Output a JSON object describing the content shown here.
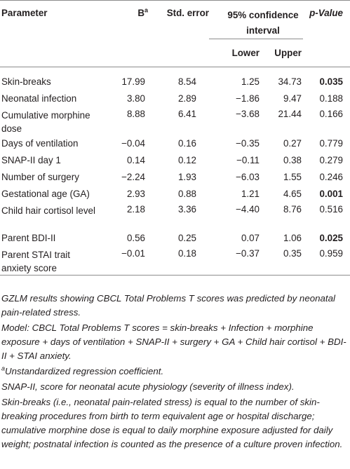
{
  "header": {
    "parameter": "Parameter",
    "b": "B",
    "b_sup": "a",
    "std_error": "Std. error",
    "ci": "95% confidence interval",
    "lower": "Lower",
    "upper": "Upper",
    "p_value": "p-Value"
  },
  "rows": [
    {
      "name": "Skin-breaks",
      "b": "17.99",
      "se": "8.54",
      "lower": "1.25",
      "upper": "34.73",
      "p": "0.035",
      "bold": true
    },
    {
      "name": "Neonatal infection",
      "b": "3.80",
      "se": "2.89",
      "lower": "−1.86",
      "upper": "9.47",
      "p": "0.188",
      "bold": false
    },
    {
      "name": "Cumulative morphine dose",
      "b": "8.88",
      "se": "6.41",
      "lower": "−3.68",
      "upper": "21.44",
      "p": "0.166",
      "bold": false
    },
    {
      "name": "Days of ventilation",
      "b": "−0.04",
      "se": "0.16",
      "lower": "−0.35",
      "upper": "0.27",
      "p": "0.779",
      "bold": false
    },
    {
      "name": "SNAP-II day 1",
      "b": "0.14",
      "se": "0.12",
      "lower": "−0.11",
      "upper": "0.38",
      "p": "0.279",
      "bold": false
    },
    {
      "name": "Number of surgery",
      "b": "−2.24",
      "se": "1.93",
      "lower": "−6.03",
      "upper": "1.55",
      "p": "0.246",
      "bold": false
    },
    {
      "name": "Gestational age (GA)",
      "b": "2.93",
      "se": "0.88",
      "lower": "1.21",
      "upper": "4.65",
      "p": "0.001",
      "bold": true
    },
    {
      "name": "Child hair cortisol level",
      "b": "2.18",
      "se": "3.36",
      "lower": "−4.40",
      "upper": "8.76",
      "p": "0.516",
      "bold": false
    },
    {
      "name": "Parent BDI-II",
      "b": "0.56",
      "se": "0.25",
      "lower": "0.07",
      "upper": "1.06",
      "p": "0.025",
      "bold": true
    },
    {
      "name": "Parent STAI trait anxiety score",
      "b": "−0.01",
      "se": "0.18",
      "lower": "−0.37",
      "upper": "0.35",
      "p": "0.959",
      "bold": false
    }
  ],
  "footnotes": {
    "summary": "GZLM results showing CBCL Total Problems T scores was predicted by neonatal pain-related stress.",
    "model": "Model: CBCL Total Problems T scores = skin-breaks + Infection + morphine exposure + days of ventilation + SNAP-II + surgery + GA + Child hair cortisol + BDI-II + STAI anxiety.",
    "a_sup": "a",
    "a_note": "Unstandardized regression coefficient.",
    "snap": "SNAP-II, score for neonatal acute physiology (severity of illness index).",
    "skin": "Skin-breaks (i.e., neonatal pain-related stress) is equal to the number of skin-breaking procedures from birth to term equivalent age or hospital discharge; cumulative morphine dose is equal to daily morphine exposure adjusted for daily weight; postnatal infection is counted as the presence of a culture proven infection."
  }
}
